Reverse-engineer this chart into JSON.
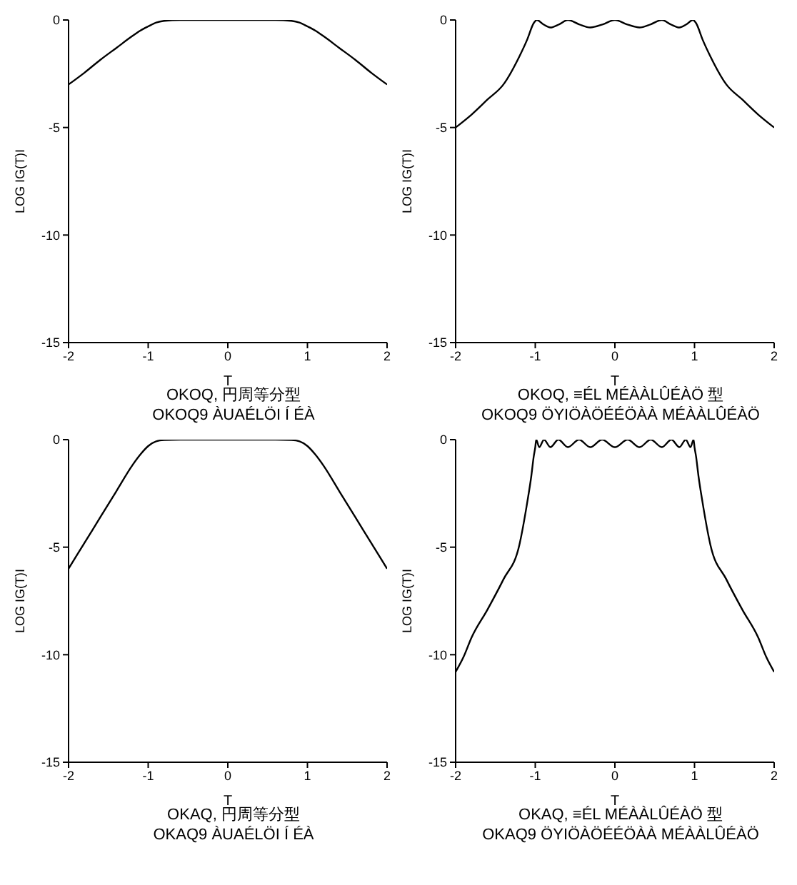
{
  "chart_data": [
    {
      "type": "line",
      "xlabel": "T",
      "ylabel": "LOG IG(T)I",
      "annotations": [
        "OKOQ, 円周等分型",
        "OKOQ9 ÀUAÉLÖI Í ÉÀ"
      ],
      "xlim": [
        -2,
        2
      ],
      "ylim": [
        -15,
        0
      ],
      "xticks": [
        -2,
        -1,
        0,
        1,
        2
      ],
      "yticks": [
        -15,
        -10,
        -5,
        0
      ],
      "marker": "none",
      "line_style": "solid",
      "series": [
        {
          "color": "#000000",
          "x": [
            -2,
            -1.8,
            -1.6,
            -1.4,
            -1.2,
            -1.1,
            -1,
            -0.9,
            -0.8,
            -0.6,
            0,
            0.6,
            0.8,
            0.9,
            1,
            1.1,
            1.2,
            1.4,
            1.6,
            1.8,
            2
          ],
          "values": [
            -3,
            -2.45,
            -1.85,
            -1.3,
            -0.75,
            -0.5,
            -0.3,
            -0.12,
            -0.04,
            0,
            0,
            0,
            -0.04,
            -0.12,
            -0.3,
            -0.5,
            -0.75,
            -1.3,
            -1.85,
            -2.45,
            -3
          ]
        }
      ]
    },
    {
      "type": "line",
      "xlabel": "T",
      "ylabel": "LOG IG(T)I",
      "annotations": [
        "OKOQ, ≡ÉL MÉÀÀLÛÉÀÖ 型",
        "OKOQ9 ÖYIÖÀÖÉÉÖÀÀ MÉÀÀLÛÉÀÖ"
      ],
      "xlim": [
        -2,
        2
      ],
      "ylim": [
        -15,
        0
      ],
      "xticks": [
        -2,
        -1,
        0,
        1,
        2
      ],
      "yticks": [
        -15,
        -10,
        -5,
        0
      ],
      "marker": "none",
      "line_style": "solid",
      "series": [
        {
          "color": "#000000",
          "x": [
            -2,
            -1.8,
            -1.6,
            -1.4,
            -1.2,
            -1.1,
            -1.02,
            -0.98,
            -0.9,
            -0.81,
            -0.7,
            -0.59,
            -0.45,
            -0.31,
            -0.15,
            0,
            0.15,
            0.31,
            0.45,
            0.59,
            0.7,
            0.81,
            0.9,
            0.98,
            1.02,
            1.1,
            1.2,
            1.4,
            1.6,
            1.8,
            2
          ],
          "values": [
            -5,
            -4.4,
            -3.7,
            -3.0,
            -1.7,
            -0.9,
            -0.15,
            0,
            -0.2,
            -0.35,
            -0.2,
            0,
            -0.2,
            -0.35,
            -0.2,
            0,
            -0.2,
            -0.35,
            -0.2,
            0,
            -0.2,
            -0.35,
            -0.2,
            0,
            -0.15,
            -0.9,
            -1.7,
            -3.0,
            -3.7,
            -4.4,
            -5
          ]
        }
      ]
    },
    {
      "type": "line",
      "xlabel": "T",
      "ylabel": "LOG IG(T)I",
      "annotations": [
        "OKAQ, 円周等分型",
        "OKAQ9 ÀUAÉLÖI Í ÉÀ"
      ],
      "xlim": [
        -2,
        2
      ],
      "ylim": [
        -15,
        0
      ],
      "xticks": [
        -2,
        -1,
        0,
        1,
        2
      ],
      "yticks": [
        -15,
        -10,
        -5,
        0
      ],
      "marker": "none",
      "line_style": "solid",
      "series": [
        {
          "color": "#000000",
          "x": [
            -2,
            -1.8,
            -1.6,
            -1.4,
            -1.2,
            -1.1,
            -1,
            -0.9,
            -0.8,
            -0.6,
            0,
            0.6,
            0.8,
            0.9,
            1,
            1.1,
            1.2,
            1.4,
            1.6,
            1.8,
            2
          ],
          "values": [
            -6,
            -4.8,
            -3.6,
            -2.4,
            -1.2,
            -0.7,
            -0.3,
            -0.08,
            -0.02,
            0,
            0,
            0,
            -0.02,
            -0.08,
            -0.3,
            -0.7,
            -1.2,
            -2.4,
            -3.6,
            -4.8,
            -6
          ]
        }
      ]
    },
    {
      "type": "line",
      "xlabel": "T",
      "ylabel": "LOG IG(T)I",
      "annotations": [
        "OKAQ, ≡ÉL MÉÀÀLÛÉÀÖ 型",
        "OKAQ9 ÖYIÖÀÖÉÉÖÀÀ MÉÀÀLÛÉÀÖ"
      ],
      "xlim": [
        -2,
        2
      ],
      "ylim": [
        -15,
        0
      ],
      "xticks": [
        -2,
        -1,
        0,
        1,
        2
      ],
      "yticks": [
        -15,
        -10,
        -5,
        0
      ],
      "marker": "none",
      "line_style": "solid",
      "series": [
        {
          "color": "#000000",
          "x": [
            -2,
            -1.9,
            -1.8,
            -1.6,
            -1.4,
            -1.2,
            -1.1,
            -1.05,
            -1.02,
            -1,
            -0.988,
            -0.95,
            -0.89,
            -0.81,
            -0.71,
            -0.59,
            -0.45,
            -0.31,
            -0.16,
            0,
            0.16,
            0.31,
            0.45,
            0.59,
            0.71,
            0.81,
            0.89,
            0.95,
            0.988,
            1,
            1.02,
            1.05,
            1.1,
            1.2,
            1.4,
            1.6,
            1.8,
            1.9,
            2
          ],
          "values": [
            -10.8,
            -10.1,
            -9.2,
            -7.9,
            -6.5,
            -4.9,
            -2.9,
            -1.7,
            -0.8,
            -0.35,
            0,
            -0.35,
            0,
            -0.35,
            0,
            -0.35,
            0,
            -0.35,
            0,
            -0.35,
            0,
            -0.35,
            0,
            -0.35,
            0,
            -0.35,
            0,
            -0.35,
            0,
            -0.35,
            -0.8,
            -1.7,
            -2.9,
            -4.9,
            -6.5,
            -7.9,
            -9.2,
            -10.1,
            -10.8
          ]
        }
      ]
    }
  ]
}
